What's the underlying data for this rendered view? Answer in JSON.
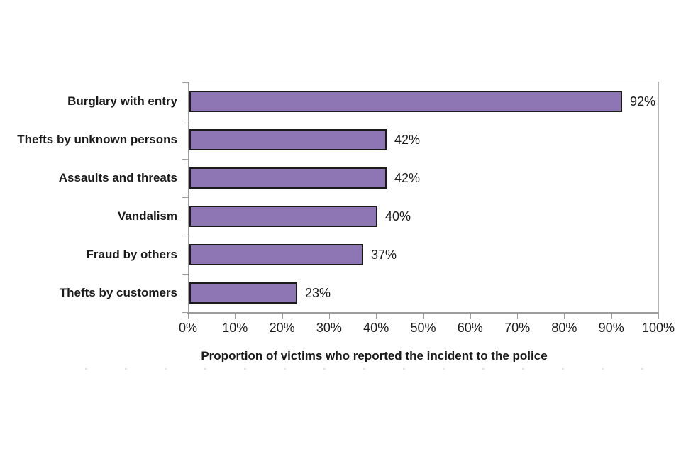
{
  "chart_data": {
    "type": "bar",
    "orientation": "horizontal",
    "title": "",
    "xlabel": "Proportion of victims who reported the incident to the police",
    "ylabel": "",
    "categories": [
      "Burglary with entry",
      "Thefts by unknown persons",
      "Assaults and threats",
      "Vandalism",
      "Fraud by others",
      "Thefts by customers"
    ],
    "values": [
      92,
      42,
      42,
      40,
      37,
      23
    ],
    "data_labels": [
      "92%",
      "42%",
      "42%",
      "40%",
      "37%",
      "23%"
    ],
    "x_ticks": [
      "0%",
      "10%",
      "20%",
      "30%",
      "40%",
      "50%",
      "60%",
      "70%",
      "80%",
      "90%",
      "100%"
    ],
    "xlim": [
      0,
      100
    ],
    "grid": false,
    "legend": false,
    "colors": {
      "bar_fill": "#8e76b5",
      "bar_border": "#1a1a1a",
      "axis_line": "#9d9d9d",
      "plot_border": "#b3b3b3",
      "text": "#1a1a1a",
      "background": "#ffffff"
    }
  }
}
